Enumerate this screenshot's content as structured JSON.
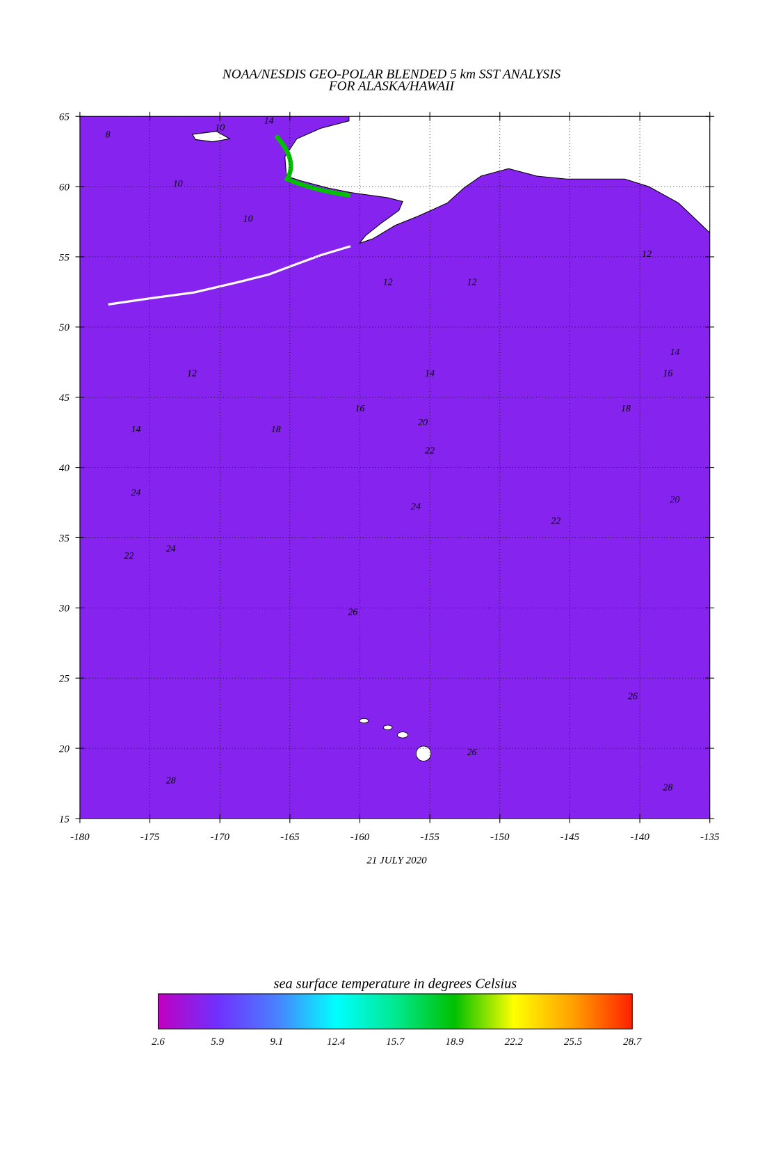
{
  "chart_data": {
    "type": "map",
    "title": "NOAA/NESDIS GEO-POLAR BLENDED 5 km SST ANALYSIS",
    "subtitle": "FOR ALASKA/HAWAII",
    "date": "21 JULY 2020",
    "xlim": [
      -180,
      -135
    ],
    "ylim": [
      15,
      65
    ],
    "xticks": [
      -180,
      -175,
      -170,
      -165,
      -160,
      -155,
      -150,
      -145,
      -140,
      -135
    ],
    "yticks": [
      15,
      20,
      25,
      30,
      35,
      40,
      45,
      50,
      55,
      60,
      65
    ],
    "grid": true,
    "contour_labels": [
      8,
      10,
      10,
      10,
      12,
      12,
      14,
      14,
      12,
      12,
      14,
      14,
      16,
      16,
      18,
      18,
      20,
      20,
      22,
      22,
      22,
      24,
      24,
      24,
      26,
      26,
      26,
      28,
      28
    ],
    "colorbar": {
      "label": "sea surface temperature in degrees Celsius",
      "ticks": [
        2.6,
        5.9,
        9.1,
        12.4,
        15.7,
        18.9,
        22.2,
        25.5,
        28.7
      ],
      "colors": [
        "#c000c0",
        "#7030ff",
        "#4a80ff",
        "#00ffff",
        "#00e890",
        "#00c000",
        "#ffff00",
        "#ffa000",
        "#ff2000"
      ]
    }
  }
}
